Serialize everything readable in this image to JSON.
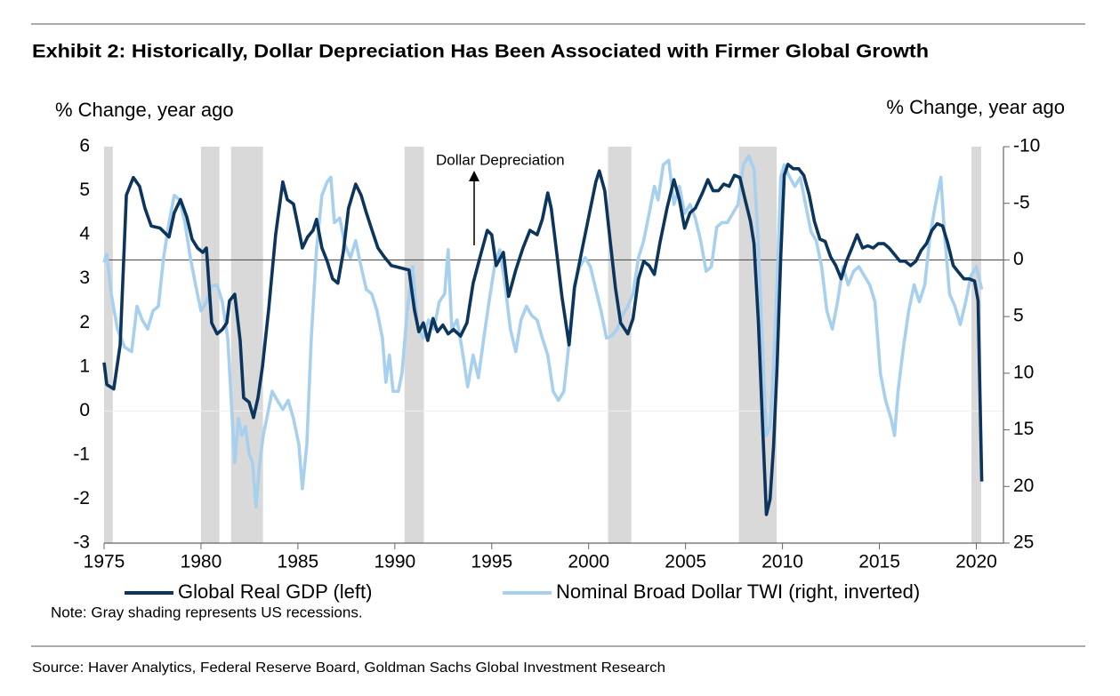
{
  "chart_data": {
    "type": "line",
    "title": "Exhibit 2: Historically, Dollar Depreciation Has Been Associated with Firmer Global Growth",
    "ylabel": "% Change, year ago",
    "y2label": "% Change, year ago",
    "annotation": "Dollar Depreciation",
    "note": "Note: Gray shading represents US recessions.",
    "source": "Source: Haver Analytics, Federal Reserve Board, Goldman Sachs Global Investment Research",
    "xlim": [
      1975,
      2021.4
    ],
    "xticks": [
      1975,
      1980,
      1985,
      1990,
      1995,
      2000,
      2005,
      2010,
      2015,
      2020
    ],
    "ylim": [
      -3,
      6
    ],
    "yticks": [
      -3,
      -2,
      -1,
      0,
      1,
      2,
      3,
      4,
      5,
      6
    ],
    "y2lim": [
      -10,
      25
    ],
    "y2ticks": [
      -10,
      -5,
      0,
      5,
      10,
      15,
      20,
      25
    ],
    "y2_inverted": true,
    "recession_color": "#d9d9d9",
    "recessions": [
      [
        1975.0,
        1975.45
      ],
      [
        1980.0,
        1980.95
      ],
      [
        1981.55,
        1983.2
      ],
      [
        1990.5,
        1991.5
      ],
      [
        2001.0,
        2002.2
      ],
      [
        2007.75,
        2009.7
      ],
      [
        2019.75,
        2020.25
      ]
    ],
    "series": [
      {
        "name": "Global Real GDP (left)",
        "color": "#0c355e",
        "axis": "y",
        "x": [
          1975.0,
          1975.14,
          1975.5,
          1975.83,
          1976.15,
          1976.51,
          1976.83,
          1977.11,
          1977.43,
          1977.89,
          1978.35,
          1978.62,
          1978.94,
          1979.27,
          1979.54,
          1979.82,
          1980.09,
          1980.28,
          1980.55,
          1980.83,
          1981.1,
          1981.33,
          1981.47,
          1981.74,
          1982.02,
          1982.2,
          1982.48,
          1982.71,
          1982.94,
          1983.17,
          1983.49,
          1983.85,
          1984.22,
          1984.45,
          1984.77,
          1985.05,
          1985.23,
          1985.5,
          1985.78,
          1985.96,
          1986.24,
          1986.51,
          1986.79,
          1987.06,
          1987.34,
          1987.61,
          1987.98,
          1988.26,
          1988.53,
          1988.9,
          1989.13,
          1989.45,
          1989.82,
          1990.28,
          1990.73,
          1991.01,
          1991.24,
          1991.47,
          1991.7,
          1991.97,
          1992.2,
          1992.48,
          1992.75,
          1993.03,
          1993.39,
          1993.72,
          1994.04,
          1994.4,
          1994.77,
          1995.0,
          1995.23,
          1995.6,
          1995.87,
          1996.24,
          1996.61,
          1996.97,
          1997.34,
          1997.61,
          1997.89,
          1998.07,
          1998.35,
          1998.62,
          1998.99,
          1999.27,
          1999.63,
          2000.0,
          2000.37,
          2000.55,
          2000.83,
          2001.1,
          2001.38,
          2001.65,
          2002.02,
          2002.29,
          2002.57,
          2002.84,
          2003.12,
          2003.39,
          2003.67,
          2004.04,
          2004.4,
          2004.68,
          2004.95,
          2005.23,
          2005.5,
          2005.87,
          2006.15,
          2006.42,
          2006.7,
          2006.97,
          2007.25,
          2007.52,
          2007.8,
          2008.07,
          2008.35,
          2008.53,
          2008.76,
          2008.99,
          2009.17,
          2009.36,
          2009.54,
          2009.72,
          2009.91,
          2010.09,
          2010.28,
          2010.55,
          2010.83,
          2011.1,
          2011.38,
          2011.65,
          2011.93,
          2012.2,
          2012.48,
          2012.75,
          2013.03,
          2013.3,
          2013.58,
          2013.85,
          2014.13,
          2014.4,
          2014.68,
          2014.95,
          2015.23,
          2015.5,
          2015.78,
          2016.06,
          2016.33,
          2016.61,
          2016.88,
          2017.16,
          2017.43,
          2017.71,
          2017.98,
          2018.26,
          2018.53,
          2018.81,
          2019.08,
          2019.36,
          2019.63,
          2019.91,
          2020.09,
          2020.28
        ],
        "values": [
          1.1,
          0.6,
          0.5,
          1.5,
          4.9,
          5.3,
          5.1,
          4.6,
          4.2,
          4.15,
          3.95,
          4.5,
          4.8,
          4.4,
          3.9,
          3.7,
          3.6,
          3.7,
          2.0,
          1.75,
          1.85,
          2.0,
          2.5,
          2.65,
          1.6,
          0.3,
          0.2,
          -0.15,
          0.3,
          1.0,
          2.3,
          4.0,
          5.2,
          4.8,
          4.7,
          4.1,
          3.7,
          3.95,
          4.1,
          4.35,
          3.7,
          3.4,
          3.0,
          2.9,
          3.6,
          4.6,
          5.15,
          4.9,
          4.5,
          4.0,
          3.7,
          3.5,
          3.3,
          3.25,
          3.2,
          2.3,
          1.8,
          2.0,
          1.6,
          2.1,
          1.8,
          1.95,
          1.75,
          1.85,
          1.7,
          2.0,
          2.9,
          3.5,
          4.1,
          4.0,
          3.3,
          3.6,
          2.6,
          3.2,
          3.7,
          4.1,
          4.0,
          4.35,
          4.95,
          4.6,
          3.6,
          2.6,
          1.5,
          2.8,
          3.6,
          4.4,
          5.2,
          5.45,
          5.0,
          3.9,
          2.8,
          2.0,
          1.75,
          2.1,
          3.0,
          3.4,
          3.3,
          3.1,
          3.8,
          4.6,
          5.25,
          4.8,
          4.15,
          4.5,
          4.6,
          4.95,
          5.25,
          5.0,
          5.0,
          5.15,
          5.1,
          5.35,
          5.3,
          4.8,
          4.3,
          3.8,
          2.0,
          -0.5,
          -2.35,
          -2.0,
          -0.8,
          1.0,
          3.5,
          5.35,
          5.6,
          5.5,
          5.5,
          5.35,
          4.9,
          4.3,
          3.9,
          3.85,
          3.5,
          3.3,
          3.0,
          3.4,
          3.7,
          4.0,
          3.7,
          3.75,
          3.7,
          3.8,
          3.8,
          3.7,
          3.55,
          3.4,
          3.4,
          3.3,
          3.4,
          3.65,
          3.8,
          4.1,
          4.25,
          4.2,
          3.8,
          3.3,
          3.15,
          3.0,
          3.0,
          2.95,
          2.5,
          -1.6
        ]
      },
      {
        "name": "Nominal Broad Dollar TWI (right, inverted)",
        "color": "#a7d0ef",
        "axis": "y2",
        "x": [
          1975.0,
          1975.14,
          1975.37,
          1975.69,
          1976.06,
          1976.42,
          1976.7,
          1976.97,
          1977.25,
          1977.52,
          1977.8,
          1978.07,
          1978.35,
          1978.62,
          1978.9,
          1979.17,
          1979.45,
          1979.72,
          1980.0,
          1980.28,
          1980.55,
          1980.83,
          1981.1,
          1981.38,
          1981.56,
          1981.74,
          1981.93,
          1982.11,
          1982.29,
          1982.48,
          1982.66,
          1982.84,
          1983.03,
          1983.21,
          1983.39,
          1983.67,
          1983.94,
          1984.22,
          1984.5,
          1984.77,
          1985.05,
          1985.23,
          1985.46,
          1985.69,
          1985.96,
          1986.24,
          1986.51,
          1986.7,
          1986.88,
          1987.16,
          1987.43,
          1987.71,
          1987.98,
          1988.26,
          1988.53,
          1988.81,
          1989.08,
          1989.36,
          1989.54,
          1989.72,
          1989.91,
          1990.18,
          1990.37,
          1990.64,
          1990.92,
          1991.19,
          1991.47,
          1991.74,
          1992.02,
          1992.29,
          1992.57,
          1992.75,
          1992.94,
          1993.21,
          1993.49,
          1993.76,
          1994.04,
          1994.31,
          1994.59,
          1994.86,
          1995.14,
          1995.41,
          1995.69,
          1995.96,
          1996.24,
          1996.51,
          1996.79,
          1997.06,
          1997.34,
          1997.61,
          1997.89,
          1998.17,
          1998.44,
          1998.72,
          1998.99,
          1999.27,
          1999.54,
          1999.82,
          2000.09,
          2000.37,
          2000.64,
          2000.92,
          2001.19,
          2001.47,
          2001.74,
          2002.02,
          2002.29,
          2002.57,
          2002.84,
          2003.12,
          2003.39,
          2003.58,
          2003.85,
          2004.13,
          2004.4,
          2004.68,
          2004.95,
          2005.23,
          2005.5,
          2005.78,
          2006.06,
          2006.33,
          2006.61,
          2006.88,
          2007.16,
          2007.43,
          2007.71,
          2007.98,
          2008.26,
          2008.53,
          2008.72,
          2008.99,
          2009.17,
          2009.36,
          2009.54,
          2009.72,
          2009.91,
          2010.09,
          2010.37,
          2010.64,
          2010.92,
          2011.19,
          2011.47,
          2011.74,
          2012.02,
          2012.29,
          2012.57,
          2012.84,
          2013.12,
          2013.39,
          2013.67,
          2013.94,
          2014.22,
          2014.5,
          2014.77,
          2015.05,
          2015.32,
          2015.6,
          2015.78,
          2015.96,
          2016.24,
          2016.51,
          2016.79,
          2017.06,
          2017.34,
          2017.61,
          2017.89,
          2018.17,
          2018.35,
          2018.62,
          2018.9,
          2019.17,
          2019.45,
          2019.72,
          2020.0,
          2020.28
        ],
        "values": [
          0.2,
          -0.5,
          3.0,
          6.1,
          7.7,
          8.1,
          4.1,
          5.3,
          6.1,
          4.5,
          4.1,
          -0.2,
          -3.3,
          -5.7,
          -5.3,
          -3.3,
          -0.2,
          2.2,
          4.5,
          3.7,
          2.3,
          2.2,
          3.7,
          6.9,
          12.4,
          17.9,
          14.0,
          15.5,
          14.7,
          17.1,
          17.9,
          21.8,
          17.9,
          15.5,
          14.0,
          11.6,
          12.4,
          13.2,
          12.4,
          14.0,
          16.3,
          20.2,
          16.3,
          6.9,
          -0.9,
          -5.7,
          -6.9,
          -7.3,
          -3.3,
          -3.7,
          -1.3,
          -0.2,
          -1.7,
          0.6,
          2.6,
          3.0,
          4.5,
          6.9,
          10.8,
          8.4,
          11.6,
          11.6,
          10.0,
          4.5,
          0.6,
          6.1,
          6.9,
          5.3,
          6.1,
          3.7,
          3.0,
          -0.9,
          6.1,
          5.3,
          8.1,
          11.2,
          8.4,
          10.4,
          6.9,
          3.7,
          0.6,
          -0.9,
          2.2,
          6.1,
          8.1,
          5.3,
          4.1,
          4.9,
          5.3,
          6.9,
          8.4,
          11.6,
          12.4,
          11.6,
          7.3,
          2.2,
          0.6,
          -0.2,
          0.6,
          2.6,
          4.5,
          6.9,
          6.7,
          6.1,
          4.9,
          4.1,
          3.0,
          -0.2,
          -1.7,
          -4.1,
          -6.5,
          -5.3,
          -8.4,
          -8.8,
          -4.9,
          -6.5,
          -4.1,
          -4.9,
          -3.7,
          -1.7,
          1.0,
          0.6,
          -2.9,
          -3.3,
          -3.3,
          -4.1,
          -4.9,
          -8.4,
          -9.2,
          -8.0,
          -2.5,
          8.4,
          15.5,
          14.7,
          9.2,
          2.2,
          -7.3,
          -8.4,
          -7.3,
          -6.5,
          -7.3,
          -4.9,
          -2.5,
          -1.7,
          0.6,
          4.5,
          6.1,
          3.7,
          0.6,
          2.2,
          1.0,
          0.6,
          1.4,
          2.2,
          3.7,
          10.0,
          12.4,
          14.0,
          15.5,
          11.6,
          7.7,
          4.5,
          2.2,
          3.7,
          2.2,
          -2.1,
          -4.9,
          -7.3,
          -2.5,
          3.0,
          4.1,
          5.7,
          3.7,
          1.4,
          0.6,
          2.6
        ]
      }
    ]
  }
}
